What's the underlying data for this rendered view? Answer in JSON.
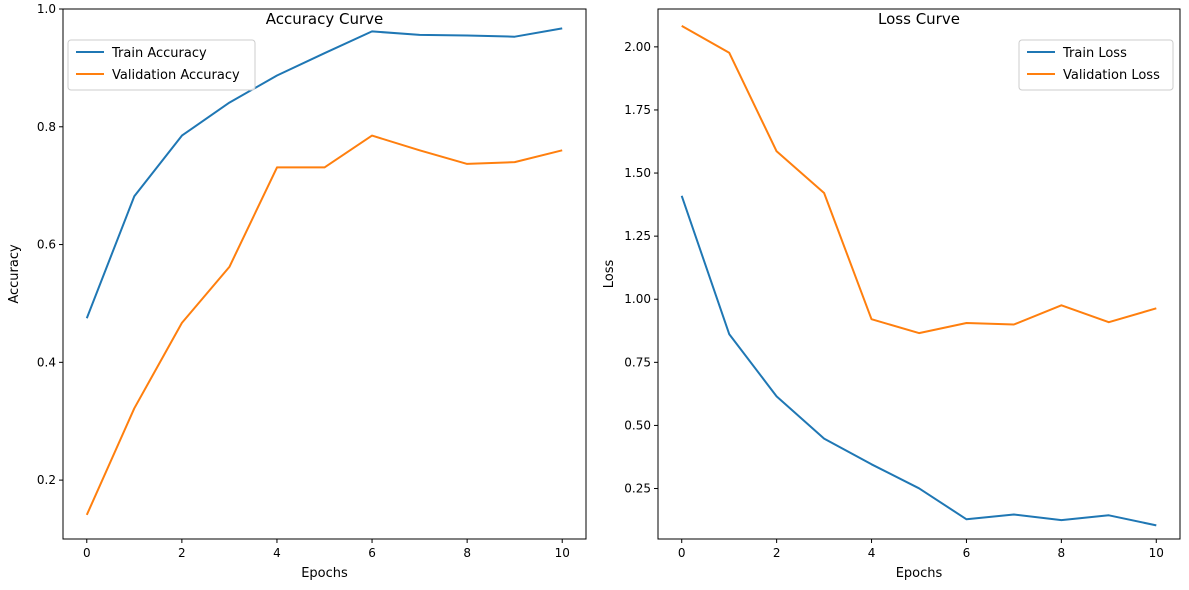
{
  "chart_data": [
    {
      "type": "line",
      "title": "Accuracy Curve",
      "xlabel": "Epochs",
      "ylabel": "Accuracy",
      "xlim": [
        -0.5,
        10.5
      ],
      "ylim": [
        0.1,
        1.0
      ],
      "x_ticks": [
        "0",
        "2",
        "4",
        "6",
        "8",
        "10"
      ],
      "y_ticks": [
        "0.2",
        "0.4",
        "0.6",
        "0.8",
        "1.0"
      ],
      "grid": false,
      "legend_position": "upper left",
      "x": [
        0,
        1,
        2,
        3,
        4,
        5,
        6,
        7,
        8,
        9,
        10
      ],
      "series": [
        {
          "name": "Train Accuracy",
          "color": "#1f77b4",
          "values": [
            0.475,
            0.682,
            0.785,
            0.841,
            0.887,
            0.925,
            0.962,
            0.956,
            0.955,
            0.953,
            0.967
          ]
        },
        {
          "name": "Validation Accuracy",
          "color": "#ff7f0e",
          "values": [
            0.141,
            0.322,
            0.467,
            0.562,
            0.731,
            0.731,
            0.785,
            0.76,
            0.737,
            0.74,
            0.76
          ]
        }
      ]
    },
    {
      "type": "line",
      "title": "Loss Curve",
      "xlabel": "Epochs",
      "ylabel": "Loss",
      "xlim": [
        -0.5,
        10.5
      ],
      "ylim": [
        0.05,
        2.15
      ],
      "x_ticks": [
        "0",
        "2",
        "4",
        "6",
        "8",
        "10"
      ],
      "y_ticks": [
        "0.25",
        "0.50",
        "0.75",
        "1.00",
        "1.25",
        "1.50",
        "1.75",
        "2.00"
      ],
      "grid": false,
      "legend_position": "upper right",
      "x": [
        0,
        1,
        2,
        3,
        4,
        5,
        6,
        7,
        8,
        9,
        10
      ],
      "series": [
        {
          "name": "Train Loss",
          "color": "#1f77b4",
          "values": [
            1.41,
            0.862,
            0.615,
            0.448,
            0.346,
            0.251,
            0.128,
            0.147,
            0.125,
            0.144,
            0.104
          ]
        },
        {
          "name": "Validation Loss",
          "color": "#ff7f0e",
          "values": [
            2.083,
            1.977,
            1.586,
            1.421,
            0.921,
            0.866,
            0.906,
            0.9,
            0.976,
            0.909,
            0.964
          ]
        }
      ]
    }
  ]
}
